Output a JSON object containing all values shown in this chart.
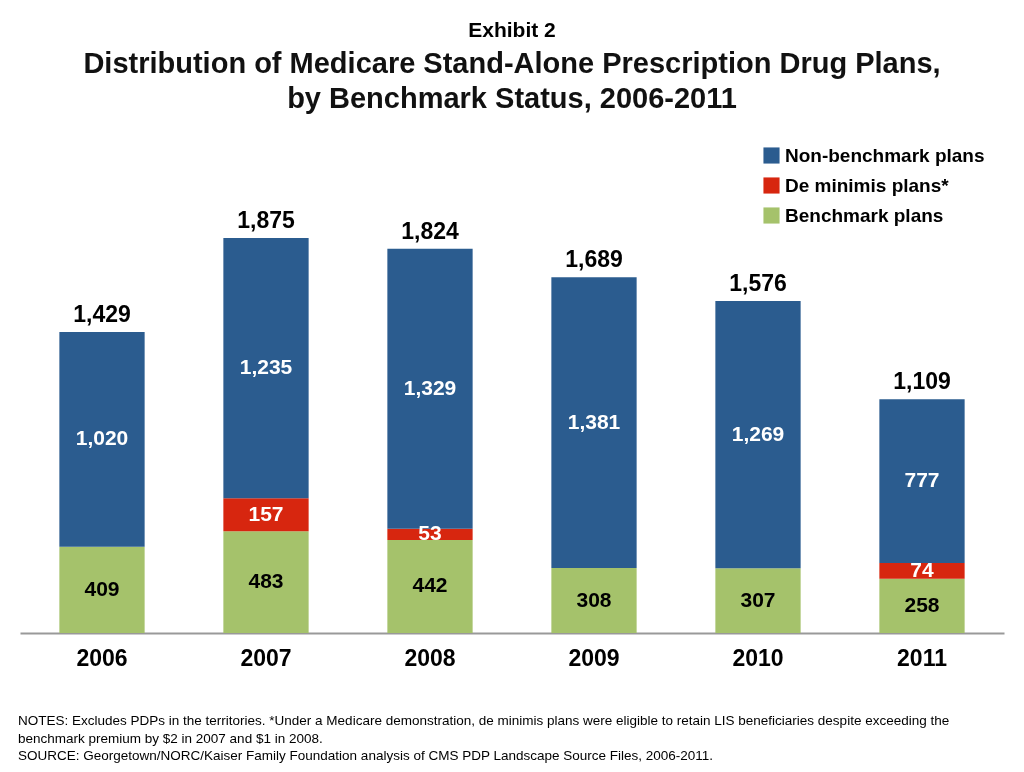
{
  "chart_data": {
    "type": "bar",
    "title": "Distribution of Medicare Stand-Alone Prescription Drug Plans, by Benchmark Status, 2006-2011",
    "subtitle": "Exhibit 2",
    "categories": [
      "2006",
      "2007",
      "2008",
      "2009",
      "2010",
      "2011"
    ],
    "stacked": true,
    "series": [
      {
        "name": "Benchmark plans",
        "color": "#a5c26b",
        "values": [
          409,
          483,
          442,
          308,
          307,
          258
        ],
        "value_labels": [
          "409",
          "483",
          "442",
          "308",
          "307",
          "258"
        ]
      },
      {
        "name": "De minimis plans*",
        "color": "#d7260f",
        "values": [
          null,
          157,
          53,
          null,
          null,
          74
        ],
        "value_labels": [
          null,
          "157",
          "53",
          null,
          null,
          "74"
        ]
      },
      {
        "name": "Non-benchmark plans",
        "color": "#2b5c8f",
        "values": [
          1020,
          1235,
          1329,
          1381,
          1269,
          777
        ],
        "value_labels": [
          "1,020",
          "1,235",
          "1,329",
          "1,381",
          "1,269",
          "777"
        ]
      }
    ],
    "totals": [
      "1,429",
      "1,875",
      "1,824",
      "1,689",
      "1,576",
      "1,109"
    ],
    "legend": "top right",
    "annotations": [
      "NOTES: Excludes PDPs in the territories. *Under a Medicare demonstration, de minimis plans were eligible to retain LIS beneficiaries despite exceeding the benchmark premium by $2 in 2007 and $1 in 2008.",
      "SOURCE: Georgetown/NORC/Kaiser Family Foundation analysis of CMS PDP Landscape Source Files, 2006-2011."
    ]
  }
}
